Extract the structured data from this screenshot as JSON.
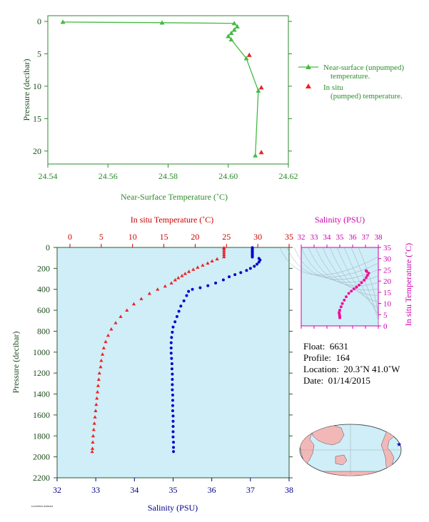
{
  "chart_data": [
    {
      "type": "line",
      "xlabel": "Near-Surface Temperature (˚C)",
      "ylabel": "Pressure (decibar)",
      "xlim": [
        24.54,
        24.62
      ],
      "ylim": [
        0,
        22
      ],
      "x_ticks": [
        "24.54",
        "24.56",
        "24.58",
        "24.60",
        "24.62"
      ],
      "y_ticks": [
        "0",
        "5",
        "10",
        "15",
        "20"
      ],
      "grid": false,
      "legend_position": "right",
      "series": [
        {
          "name": "Near-surface (unpumped) temperature.",
          "color": "#44bb44",
          "marker": "triangle",
          "line": true,
          "points": [
            {
              "x": 24.545,
              "y": 0.1
            },
            {
              "x": 24.578,
              "y": 0.2
            },
            {
              "x": 24.602,
              "y": 0.3
            },
            {
              "x": 24.603,
              "y": 0.8
            },
            {
              "x": 24.602,
              "y": 1.3
            },
            {
              "x": 24.601,
              "y": 1.8
            },
            {
              "x": 24.6,
              "y": 2.3
            },
            {
              "x": 24.601,
              "y": 2.8
            },
            {
              "x": 24.606,
              "y": 5.7
            },
            {
              "x": 24.61,
              "y": 10.7
            },
            {
              "x": 24.609,
              "y": 20.7
            }
          ]
        },
        {
          "name": "In situ (pumped) temperature.",
          "color": "#ee2222",
          "marker": "triangle",
          "line": false,
          "points": [
            {
              "x": 24.607,
              "y": 5.2
            },
            {
              "x": 24.611,
              "y": 10.2
            },
            {
              "x": 24.611,
              "y": 20.2
            }
          ]
        }
      ]
    },
    {
      "type": "scatter",
      "ylabel": "Pressure (decibar)",
      "top_xlabel": "In situ Temperature (˚C)",
      "bottom_xlabel": "Salinity (PSU)",
      "ylim": [
        0,
        2200
      ],
      "temperature_xlim": [
        0,
        35
      ],
      "salinity_xlim": [
        32,
        38
      ],
      "y_ticks": [
        "0",
        "200",
        "400",
        "600",
        "800",
        "1000",
        "1200",
        "1400",
        "1600",
        "1800",
        "2000",
        "2200"
      ],
      "temperature_ticks": [
        "0",
        "5",
        "10",
        "15",
        "20",
        "25",
        "30",
        "35"
      ],
      "salinity_ticks": [
        "32",
        "33",
        "34",
        "35",
        "36",
        "37",
        "38"
      ],
      "background_color": "#cfeef7",
      "series": [
        {
          "name": "In situ Temperature",
          "color": "#ee2222",
          "marker": "triangle",
          "points": [
            {
              "x": 24.6,
              "y": 2
            },
            {
              "x": 24.6,
              "y": 10
            },
            {
              "x": 24.6,
              "y": 30
            },
            {
              "x": 24.6,
              "y": 50
            },
            {
              "x": 24.6,
              "y": 70
            },
            {
              "x": 24.6,
              "y": 90
            },
            {
              "x": 23.5,
              "y": 110
            },
            {
              "x": 22.7,
              "y": 130
            },
            {
              "x": 22.0,
              "y": 150
            },
            {
              "x": 21.2,
              "y": 170
            },
            {
              "x": 20.4,
              "y": 190
            },
            {
              "x": 19.7,
              "y": 210
            },
            {
              "x": 19.0,
              "y": 230
            },
            {
              "x": 18.4,
              "y": 250
            },
            {
              "x": 17.9,
              "y": 270
            },
            {
              "x": 17.3,
              "y": 290
            },
            {
              "x": 16.8,
              "y": 310
            },
            {
              "x": 16.2,
              "y": 340
            },
            {
              "x": 15.2,
              "y": 370
            },
            {
              "x": 14.0,
              "y": 400
            },
            {
              "x": 12.7,
              "y": 440
            },
            {
              "x": 11.4,
              "y": 490
            },
            {
              "x": 10.2,
              "y": 540
            },
            {
              "x": 9.1,
              "y": 600
            },
            {
              "x": 8.1,
              "y": 660
            },
            {
              "x": 7.3,
              "y": 720
            },
            {
              "x": 6.6,
              "y": 780
            },
            {
              "x": 6.1,
              "y": 840
            },
            {
              "x": 5.7,
              "y": 900
            },
            {
              "x": 5.4,
              "y": 960
            },
            {
              "x": 5.2,
              "y": 1020
            },
            {
              "x": 5.0,
              "y": 1080
            },
            {
              "x": 4.9,
              "y": 1140
            },
            {
              "x": 4.7,
              "y": 1200
            },
            {
              "x": 4.6,
              "y": 1260
            },
            {
              "x": 4.5,
              "y": 1320
            },
            {
              "x": 4.4,
              "y": 1380
            },
            {
              "x": 4.3,
              "y": 1440
            },
            {
              "x": 4.2,
              "y": 1500
            },
            {
              "x": 4.1,
              "y": 1560
            },
            {
              "x": 4.0,
              "y": 1620
            },
            {
              "x": 3.9,
              "y": 1680
            },
            {
              "x": 3.8,
              "y": 1740
            },
            {
              "x": 3.7,
              "y": 1800
            },
            {
              "x": 3.65,
              "y": 1860
            },
            {
              "x": 3.6,
              "y": 1920
            },
            {
              "x": 3.55,
              "y": 1950
            }
          ]
        },
        {
          "name": "Salinity",
          "color": "#0000cc",
          "marker": "circle",
          "points": [
            {
              "x": 37.05,
              "y": 2
            },
            {
              "x": 37.05,
              "y": 12
            },
            {
              "x": 37.05,
              "y": 22
            },
            {
              "x": 37.05,
              "y": 32
            },
            {
              "x": 37.05,
              "y": 42
            },
            {
              "x": 37.05,
              "y": 52
            },
            {
              "x": 37.05,
              "y": 62
            },
            {
              "x": 37.05,
              "y": 72
            },
            {
              "x": 37.05,
              "y": 82
            },
            {
              "x": 37.05,
              "y": 92
            },
            {
              "x": 37.22,
              "y": 105
            },
            {
              "x": 37.25,
              "y": 120
            },
            {
              "x": 37.22,
              "y": 140
            },
            {
              "x": 37.17,
              "y": 160
            },
            {
              "x": 37.1,
              "y": 180
            },
            {
              "x": 37.0,
              "y": 200
            },
            {
              "x": 36.9,
              "y": 220
            },
            {
              "x": 36.75,
              "y": 240
            },
            {
              "x": 36.6,
              "y": 260
            },
            {
              "x": 36.45,
              "y": 280
            },
            {
              "x": 36.3,
              "y": 310
            },
            {
              "x": 36.1,
              "y": 340
            },
            {
              "x": 35.9,
              "y": 365
            },
            {
              "x": 35.7,
              "y": 385
            },
            {
              "x": 35.5,
              "y": 400
            },
            {
              "x": 35.4,
              "y": 420
            },
            {
              "x": 35.35,
              "y": 460
            },
            {
              "x": 35.28,
              "y": 510
            },
            {
              "x": 35.2,
              "y": 560
            },
            {
              "x": 35.15,
              "y": 610
            },
            {
              "x": 35.1,
              "y": 660
            },
            {
              "x": 35.05,
              "y": 710
            },
            {
              "x": 35.0,
              "y": 760
            },
            {
              "x": 34.98,
              "y": 810
            },
            {
              "x": 34.96,
              "y": 860
            },
            {
              "x": 34.95,
              "y": 910
            },
            {
              "x": 34.95,
              "y": 960
            },
            {
              "x": 34.95,
              "y": 1010
            },
            {
              "x": 34.96,
              "y": 1060
            },
            {
              "x": 34.97,
              "y": 1110
            },
            {
              "x": 34.97,
              "y": 1160
            },
            {
              "x": 34.98,
              "y": 1210
            },
            {
              "x": 34.98,
              "y": 1260
            },
            {
              "x": 34.98,
              "y": 1310
            },
            {
              "x": 34.98,
              "y": 1360
            },
            {
              "x": 34.99,
              "y": 1410
            },
            {
              "x": 34.99,
              "y": 1460
            },
            {
              "x": 34.99,
              "y": 1510
            },
            {
              "x": 34.99,
              "y": 1560
            },
            {
              "x": 35.0,
              "y": 1610
            },
            {
              "x": 35.0,
              "y": 1660
            },
            {
              "x": 35.0,
              "y": 1710
            },
            {
              "x": 35.0,
              "y": 1760
            },
            {
              "x": 35.0,
              "y": 1810
            },
            {
              "x": 35.01,
              "y": 1860
            },
            {
              "x": 35.01,
              "y": 1910
            },
            {
              "x": 35.01,
              "y": 1950
            }
          ]
        }
      ]
    },
    {
      "type": "scatter",
      "title": "Salinity (PSU)",
      "xlabel": "Salinity (PSU)",
      "ylabel": "In situ Temperature (˚C)",
      "xlim": [
        32,
        38
      ],
      "ylim": [
        0,
        35
      ],
      "x_ticks": [
        "32",
        "33",
        "34",
        "35",
        "36",
        "37",
        "38"
      ],
      "y_ticks": [
        "0",
        "5",
        "10",
        "15",
        "20",
        "25",
        "30",
        "35"
      ],
      "background_color": "#cfeef7",
      "series": [
        {
          "color": "#ee1199",
          "marker": "circle",
          "points": [
            {
              "x": 35.0,
              "y": 3.6
            },
            {
              "x": 35.0,
              "y": 4.2
            },
            {
              "x": 34.98,
              "y": 4.8
            },
            {
              "x": 34.96,
              "y": 5.4
            },
            {
              "x": 34.95,
              "y": 6.0
            },
            {
              "x": 35.0,
              "y": 7.0
            },
            {
              "x": 35.1,
              "y": 8.5
            },
            {
              "x": 35.2,
              "y": 10.0
            },
            {
              "x": 35.35,
              "y": 11.5
            },
            {
              "x": 35.5,
              "y": 13.0
            },
            {
              "x": 35.7,
              "y": 14.5
            },
            {
              "x": 35.9,
              "y": 15.5
            },
            {
              "x": 36.1,
              "y": 16.5
            },
            {
              "x": 36.3,
              "y": 17.3
            },
            {
              "x": 36.5,
              "y": 18.2
            },
            {
              "x": 36.7,
              "y": 19.3
            },
            {
              "x": 36.9,
              "y": 20.4
            },
            {
              "x": 37.05,
              "y": 21.5
            },
            {
              "x": 37.15,
              "y": 22.5
            },
            {
              "x": 37.25,
              "y": 23.5
            },
            {
              "x": 37.1,
              "y": 24.3
            },
            {
              "x": 37.05,
              "y": 24.6
            }
          ]
        }
      ]
    },
    {
      "type": "table",
      "float_label": "Float:",
      "float_value": "6631",
      "profile_label": "Profile:",
      "profile_value": "164",
      "location_label": "Location:",
      "location_value": "20.3˚N 41.0˚W",
      "date_label": "Date:",
      "date_value": "01/14/2015",
      "map_marker": {
        "lat": 20.3,
        "lon": -41.0
      }
    }
  ],
  "credit": "FLOAT6631 20150114"
}
